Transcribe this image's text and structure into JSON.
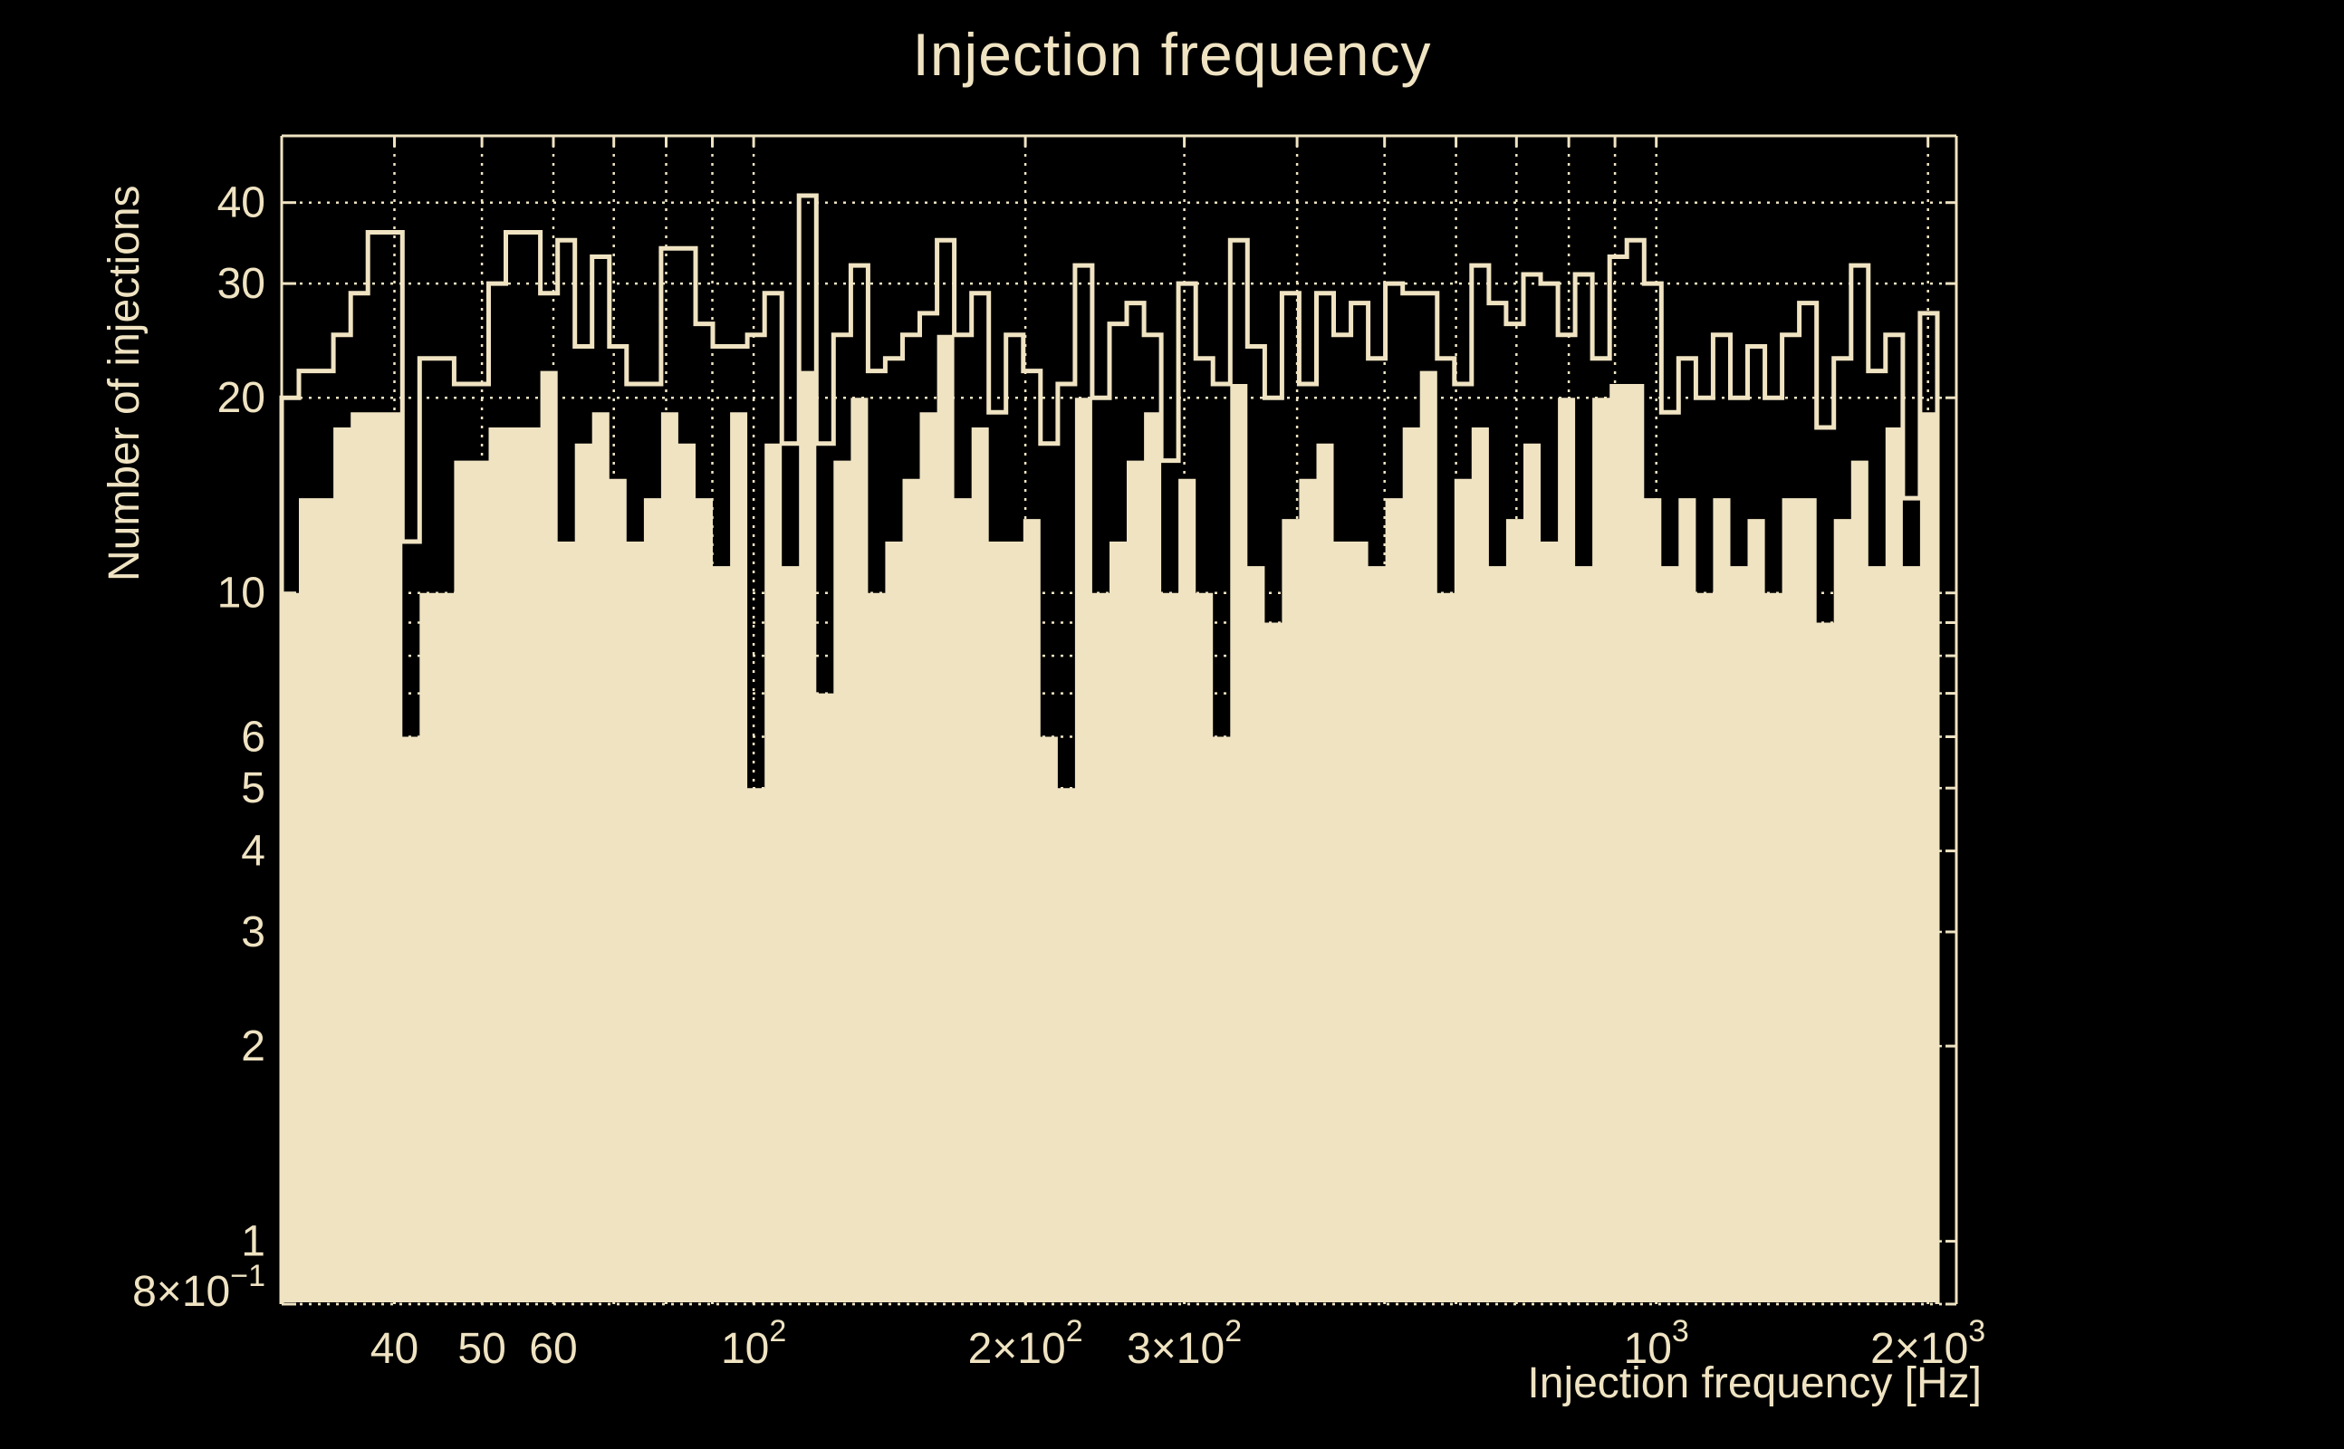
{
  "title": "Injection frequency",
  "colors": {
    "background": "#000000",
    "foreground": "#EFE3C2"
  },
  "chart_data": {
    "type": "bar",
    "title": "Injection frequency",
    "xlabel": "Injection frequency [Hz]",
    "ylabel": "Number of injections",
    "x_scale": "log",
    "y_scale": "log",
    "x_range_hz": [
      30,
      2150
    ],
    "y_range": [
      0.8,
      50.7
    ],
    "grid": "dotted, on all log divisions",
    "legend_position": "none",
    "bins": {
      "start_hz": 30,
      "end_hz": 2048,
      "count": 96,
      "spacing": "log"
    },
    "series": [
      {
        "name": "outline",
        "style": "step-line",
        "values": [
          20,
          22,
          22,
          25,
          29,
          36,
          36,
          12,
          23,
          23,
          21,
          21,
          30,
          36,
          36,
          29,
          35,
          24,
          33,
          24,
          21,
          21,
          34,
          34,
          26,
          24,
          24,
          25,
          29,
          17,
          41,
          17,
          25,
          32,
          22,
          23,
          25,
          27,
          35,
          25,
          29,
          19,
          25,
          22,
          17,
          21,
          32,
          20,
          26,
          28,
          25,
          16,
          30,
          23,
          21,
          35,
          24,
          20,
          29,
          21,
          29,
          25,
          28,
          23,
          30,
          29,
          29,
          23,
          21,
          32,
          28,
          26,
          31,
          30,
          25,
          31,
          23,
          33,
          35,
          30,
          19,
          23,
          20,
          25,
          20,
          24,
          20,
          25,
          28,
          18,
          23,
          32,
          22,
          25,
          14,
          27
        ]
      },
      {
        "name": "filled",
        "style": "filled",
        "values": [
          10,
          14,
          14,
          18,
          19,
          19,
          19,
          6,
          10,
          10,
          16,
          16,
          18,
          18,
          18,
          22,
          12,
          17,
          19,
          15,
          12,
          14,
          19,
          17,
          14,
          11,
          19,
          5,
          17,
          11,
          22,
          7,
          16,
          20,
          10,
          12,
          15,
          19,
          25,
          14,
          18,
          12,
          12,
          13,
          6,
          5,
          20,
          10,
          12,
          16,
          19,
          10,
          15,
          10,
          6,
          21,
          11,
          9,
          13,
          15,
          17,
          12,
          12,
          11,
          14,
          18,
          22,
          10,
          15,
          18,
          11,
          13,
          17,
          12,
          20,
          11,
          20,
          21,
          21,
          14,
          11,
          14,
          10,
          14,
          11,
          13,
          10,
          14,
          14,
          9,
          13,
          16,
          11,
          18,
          11,
          19
        ]
      }
    ],
    "x_tick_labels": [
      {
        "f": 40,
        "t": "40",
        "exp": ""
      },
      {
        "f": 50,
        "t": "50",
        "exp": ""
      },
      {
        "f": 60,
        "t": "60",
        "exp": ""
      },
      {
        "f": 100,
        "t": "10",
        "exp": "2"
      },
      {
        "f": 200,
        "t": "2×10",
        "exp": "2"
      },
      {
        "f": 300,
        "t": "3×10",
        "exp": "2"
      },
      {
        "f": 1000,
        "t": "10",
        "exp": "3"
      },
      {
        "f": 2000,
        "t": "2×10",
        "exp": "3"
      }
    ],
    "y_tick_labels": [
      {
        "v": 40,
        "t": "40",
        "exp": ""
      },
      {
        "v": 30,
        "t": "30",
        "exp": ""
      },
      {
        "v": 20,
        "t": "20",
        "exp": ""
      },
      {
        "v": 10,
        "t": "10",
        "exp": ""
      },
      {
        "v": 6,
        "t": "6",
        "exp": ""
      },
      {
        "v": 5,
        "t": "5",
        "exp": ""
      },
      {
        "v": 4,
        "t": "4",
        "exp": ""
      },
      {
        "v": 3,
        "t": "3",
        "exp": ""
      },
      {
        "v": 2,
        "t": "2",
        "exp": ""
      },
      {
        "v": 1,
        "t": "1",
        "exp": ""
      },
      {
        "v": 0.8,
        "t": "8×10",
        "exp": "−1"
      }
    ],
    "grid_x_hz": [
      40,
      50,
      60,
      70,
      80,
      90,
      100,
      200,
      300,
      400,
      500,
      600,
      700,
      800,
      900,
      1000,
      2000
    ],
    "grid_y": [
      0.8,
      1,
      2,
      3,
      4,
      5,
      6,
      7,
      8,
      9,
      10,
      20,
      30,
      40
    ]
  }
}
